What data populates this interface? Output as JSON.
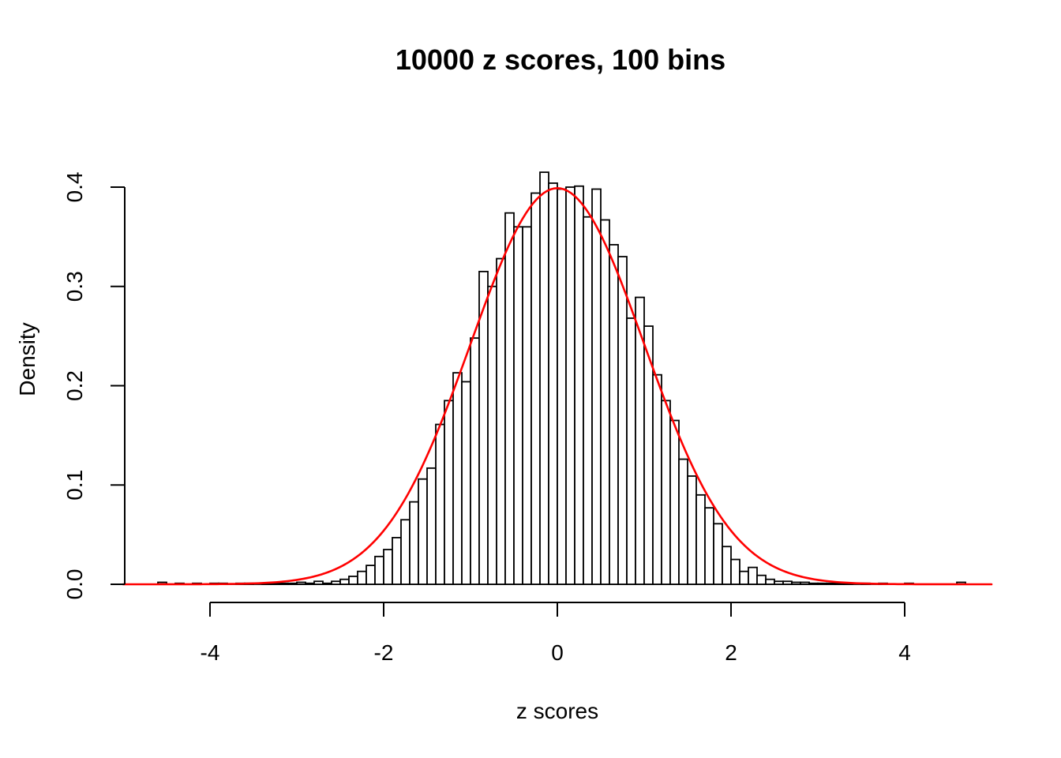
{
  "window": {
    "background": "#FFFFFF",
    "foreground": "#000000"
  },
  "chart_data": {
    "type": "bar",
    "subtype": "histogram-with-density-curve",
    "title": "10000 z scores, 100 bins",
    "xlabel": "z scores",
    "ylabel": "Density",
    "xlim": [
      -5,
      5
    ],
    "ylim": [
      0,
      0.42
    ],
    "grid": false,
    "legend": "none",
    "x_ticks": {
      "values": [
        -4,
        -2,
        0,
        2,
        4
      ],
      "labels": [
        "-4",
        "-2",
        "0",
        "2",
        "4"
      ]
    },
    "y_ticks": {
      "values": [
        0,
        0.1,
        0.2,
        0.3,
        0.4
      ],
      "labels": [
        "0.0",
        "0.1",
        "0.2",
        "0.3",
        "0.4"
      ]
    },
    "histogram": {
      "n_observations": 10000,
      "bin_width": 0.1,
      "bar_fill": "#FFFFFF",
      "bar_stroke": "#000000",
      "bin_starts": [
        -4.6,
        -4.5,
        -4.4,
        -4.3,
        -4.2,
        -4.1,
        -4.0,
        -3.9,
        -3.8,
        -3.7,
        -3.6,
        -3.5,
        -3.4,
        -3.3,
        -3.2,
        -3.1,
        -3.0,
        -2.9,
        -2.8,
        -2.7,
        -2.6,
        -2.5,
        -2.4,
        -2.3,
        -2.2,
        -2.1,
        -2.0,
        -1.9,
        -1.8,
        -1.7,
        -1.6,
        -1.5,
        -1.4,
        -1.3,
        -1.2,
        -1.1,
        -1.0,
        -0.9,
        -0.8,
        -0.7,
        -0.6,
        -0.5,
        -0.4,
        -0.3,
        -0.2,
        -0.1,
        0.0,
        0.1,
        0.2,
        0.3,
        0.4,
        0.5,
        0.6,
        0.7,
        0.8,
        0.9,
        1.0,
        1.1,
        1.2,
        1.3,
        1.4,
        1.5,
        1.6,
        1.7,
        1.8,
        1.9,
        2.0,
        2.1,
        2.2,
        2.3,
        2.4,
        2.5,
        2.6,
        2.7,
        2.8,
        2.9,
        3.0,
        3.1,
        3.2,
        3.3,
        3.4,
        3.5,
        3.6,
        3.7,
        3.8,
        3.9,
        4.0,
        4.1,
        4.2,
        4.3,
        4.4,
        4.5,
        4.6
      ],
      "densities": [
        0.002,
        0,
        0.001,
        0,
        0.001,
        0,
        0.001,
        0.001,
        0,
        0.001,
        0.001,
        0,
        0.001,
        0.001,
        0.001,
        0.001,
        0.002,
        0.001,
        0.003,
        0.001,
        0.003,
        0.005,
        0.008,
        0.013,
        0.019,
        0.028,
        0.035,
        0.047,
        0.065,
        0.083,
        0.106,
        0.117,
        0.161,
        0.185,
        0.213,
        0.204,
        0.248,
        0.315,
        0.3,
        0.328,
        0.374,
        0.36,
        0.36,
        0.394,
        0.415,
        0.404,
        0.398,
        0.4,
        0.401,
        0.37,
        0.398,
        0.367,
        0.342,
        0.33,
        0.268,
        0.289,
        0.26,
        0.211,
        0.185,
        0.165,
        0.126,
        0.109,
        0.09,
        0.077,
        0.061,
        0.038,
        0.025,
        0.013,
        0.017,
        0.009,
        0.005,
        0.003,
        0.003,
        0.002,
        0.002,
        0.001,
        0.001,
        0.001,
        0.001,
        0.001,
        0,
        0.001,
        0,
        0.001,
        0,
        0,
        0.001,
        0,
        0,
        0,
        0,
        0,
        0.002
      ]
    },
    "curve": {
      "name": "standard normal density",
      "distribution": "normal",
      "mean": 0,
      "sd": 1,
      "peak_density": 0.3989,
      "color": "#FF0000",
      "x_range": [
        -5,
        5
      ]
    }
  }
}
